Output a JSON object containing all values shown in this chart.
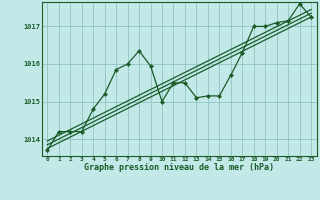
{
  "title": "Graphe pression niveau de la mer (hPa)",
  "bg_color": "#c2e8e8",
  "grid_color": "#90c4c4",
  "line_color": "#1a5c28",
  "marker_color": "#1a5c28",
  "x_ticks": [
    0,
    1,
    2,
    3,
    4,
    5,
    6,
    7,
    8,
    9,
    10,
    11,
    12,
    13,
    14,
    15,
    16,
    17,
    18,
    19,
    20,
    21,
    22,
    23
  ],
  "y_ticks": [
    1014,
    1015,
    1016,
    1017
  ],
  "ylim": [
    1013.55,
    1017.65
  ],
  "xlim": [
    -0.5,
    23.5
  ],
  "linear_series": [
    [
      0,
      1013.75,
      23,
      1017.25
    ],
    [
      0,
      1013.85,
      23,
      1017.35
    ],
    [
      0,
      1013.95,
      23,
      1017.45
    ]
  ],
  "main_series_x": [
    0,
    1,
    2,
    3,
    4,
    5,
    6,
    7,
    8,
    9,
    10,
    11,
    12,
    13,
    14,
    15,
    16,
    17,
    18,
    19,
    20,
    21,
    22,
    23
  ],
  "main_series_y": [
    1013.7,
    1014.2,
    1014.2,
    1014.2,
    1014.8,
    1015.2,
    1015.85,
    1016.0,
    1016.35,
    1015.95,
    1015.0,
    1015.5,
    1015.5,
    1015.1,
    1015.15,
    1015.15,
    1015.7,
    1016.3,
    1017.0,
    1017.0,
    1017.1,
    1017.15,
    1017.6,
    1017.25
  ]
}
